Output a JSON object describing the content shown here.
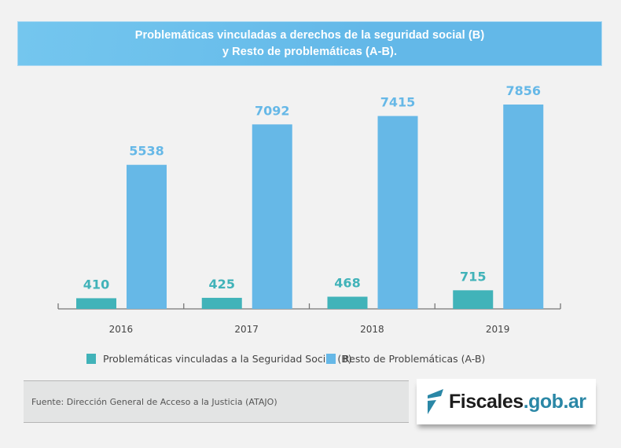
{
  "header": {
    "title_line1": "Problemáticas vinculadas a derechos de la seguridad social (B)",
    "title_line2": "y Resto de problemáticas (A-B)."
  },
  "colors": {
    "series_b": "#41b3b9",
    "series_ab": "#66b8e7",
    "label_b": "#41b3b9",
    "label_ab": "#66b8e7",
    "axis": "#777777",
    "logo_domain": "#2a87a6"
  },
  "chart_data": {
    "type": "bar",
    "title": "Problemáticas vinculadas a derechos de la seguridad social (B) y Resto de problemáticas (A-B).",
    "categories": [
      "2016",
      "2017",
      "2018",
      "2019"
    ],
    "series": [
      {
        "name": "Problemáticas vinculadas a la Seguridad Social (B)",
        "values": [
          410,
          425,
          468,
          715
        ]
      },
      {
        "name": "Resto de Problemáticas (A-B)",
        "values": [
          5538,
          7092,
          7415,
          7856
        ]
      }
    ],
    "xlabel": "",
    "ylabel": "",
    "ylim": [
      0,
      7856
    ],
    "grid": false,
    "legend": "bottom",
    "data_labels": true
  },
  "legend": {
    "items": [
      {
        "label": "Problemáticas vinculadas a la Seguridad Social (B)"
      },
      {
        "label": "Resto de Problemáticas (A-B)"
      }
    ]
  },
  "footer": {
    "source": "Fuente: Dirección General de Acceso a la Justicia (ATAJO)",
    "logo_main": "Fiscales",
    "logo_domain": ".gob.ar"
  }
}
